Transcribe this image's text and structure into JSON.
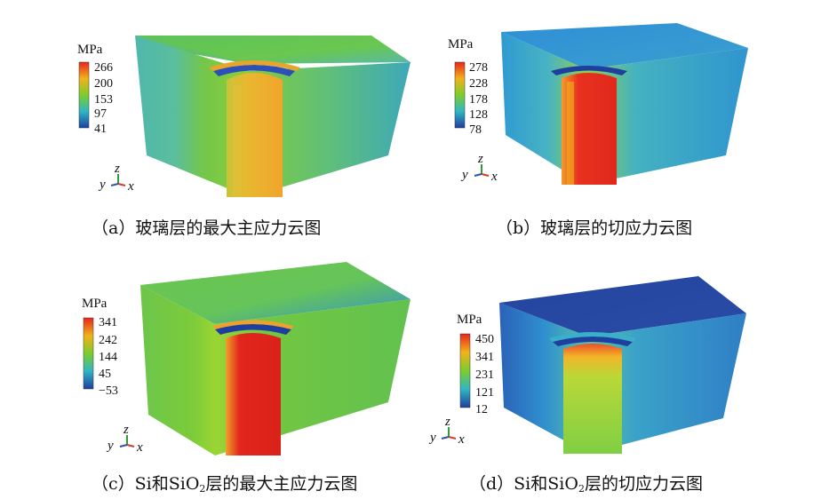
{
  "panels": [
    {
      "id": "a",
      "unit": "MPa",
      "ticks": [
        "266",
        "200",
        "153",
        "97",
        "41"
      ],
      "caption": "（a）玻璃层的最大主应力云图",
      "axes": {
        "y": "y",
        "z": "z",
        "x": "x"
      }
    },
    {
      "id": "b",
      "unit": "MPa",
      "ticks": [
        "278",
        "228",
        "178",
        "128",
        "78"
      ],
      "caption": "（b）玻璃层的切应力云图",
      "axes": {
        "y": "y",
        "z": "z",
        "x": "x"
      }
    },
    {
      "id": "c",
      "unit": "MPa",
      "ticks": [
        "341",
        "242",
        "144",
        "45",
        "−53"
      ],
      "caption_prefix": "（c）Si和SiO",
      "caption_sub": "2",
      "caption_suffix": "层的最大主应力云图",
      "axes": {
        "y": "y",
        "z": "z",
        "x": "x"
      }
    },
    {
      "id": "d",
      "unit": "MPa",
      "ticks": [
        "450",
        "341",
        "231",
        "121",
        "12"
      ],
      "caption_prefix": "（d）Si和SiO",
      "caption_sub": "2",
      "caption_suffix": "层的切应力云图",
      "axes": {
        "y": "y",
        "z": "z",
        "x": "x"
      }
    }
  ],
  "colors": {
    "legend_top": "#e8261e",
    "legend_upper": "#f2b21a",
    "legend_mid": "#7ccd2a",
    "legend_lower": "#2fb7c4",
    "legend_bottom": "#1f3f9e",
    "axis_z": "#2e9e3a",
    "axis_x": "#d23a2a",
    "axis_y": "#2d4fb8"
  }
}
